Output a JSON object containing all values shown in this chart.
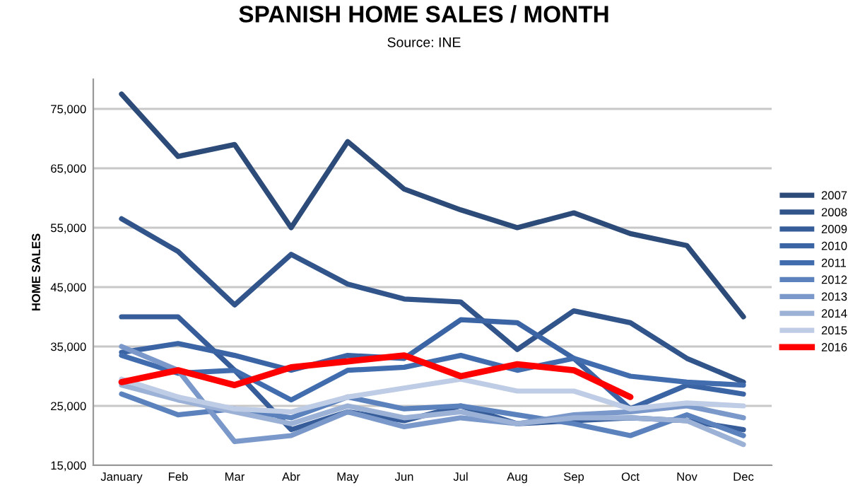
{
  "chart_data": {
    "type": "line",
    "title": "SPANISH HOME SALES / MONTH",
    "subtitle": "Source: INE",
    "ylabel": "HOME SALES",
    "categories": [
      "January",
      "Feb",
      "Mar",
      "Abr",
      "May",
      "Jun",
      "Jul",
      "Aug",
      "Sep",
      "Oct",
      "Nov",
      "Dec"
    ],
    "ylim": [
      15000,
      80000
    ],
    "yticks": [
      {
        "value": 15000,
        "label": "15,000"
      },
      {
        "value": 25000,
        "label": "25,000"
      },
      {
        "value": 35000,
        "label": "35,000"
      },
      {
        "value": 45000,
        "label": "45,000"
      },
      {
        "value": 55000,
        "label": "55,000"
      },
      {
        "value": 65000,
        "label": "65,000"
      },
      {
        "value": 75000,
        "label": "75,000"
      }
    ],
    "grid": "y",
    "legend": "right",
    "marker": "none",
    "line_style": "solid",
    "series": [
      {
        "name": "2007",
        "color": "#2d4b78",
        "values": [
          77500,
          67000,
          69000,
          55000,
          69500,
          61500,
          58000,
          55000,
          57500,
          54000,
          52000,
          40000
        ]
      },
      {
        "name": "2008",
        "color": "#31548a",
        "values": [
          56500,
          51000,
          42000,
          50500,
          45500,
          43000,
          42500,
          34500,
          41000,
          39000,
          33000,
          29000
        ]
      },
      {
        "name": "2009",
        "color": "#365d99",
        "values": [
          40000,
          40000,
          31000,
          21000,
          24000,
          22500,
          25000,
          22000,
          22500,
          23000,
          22500,
          21000
        ]
      },
      {
        "name": "2010",
        "color": "#3b64a4",
        "values": [
          34000,
          35500,
          33500,
          31000,
          33500,
          33000,
          39500,
          39000,
          33000,
          24500,
          28500,
          27000
        ]
      },
      {
        "name": "2011",
        "color": "#416cae",
        "values": [
          33500,
          30500,
          31000,
          26000,
          31000,
          31500,
          33500,
          31000,
          33000,
          30000,
          29000,
          28500
        ]
      },
      {
        "name": "2012",
        "color": "#5b82bd",
        "values": [
          27000,
          23500,
          24500,
          23000,
          26500,
          24500,
          25000,
          23500,
          22000,
          20000,
          23500,
          20000
        ]
      },
      {
        "name": "2013",
        "color": "#7a98c9",
        "values": [
          35000,
          31000,
          19000,
          20000,
          24000,
          21500,
          23000,
          22000,
          23500,
          24000,
          25000,
          23000
        ]
      },
      {
        "name": "2014",
        "color": "#9cb1d6",
        "values": [
          28500,
          26000,
          24000,
          22000,
          25000,
          23000,
          24000,
          22000,
          23000,
          23000,
          22500,
          18500
        ]
      },
      {
        "name": "2015",
        "color": "#bfcce5",
        "values": [
          29500,
          26500,
          24500,
          24000,
          26500,
          28000,
          29500,
          27500,
          27500,
          24500,
          25500,
          25000
        ]
      },
      {
        "name": "2016",
        "color": "#ff0000",
        "values": [
          29000,
          31000,
          28500,
          31500,
          32500,
          33500,
          30000,
          32000,
          31000,
          26500,
          null,
          null
        ]
      }
    ]
  }
}
